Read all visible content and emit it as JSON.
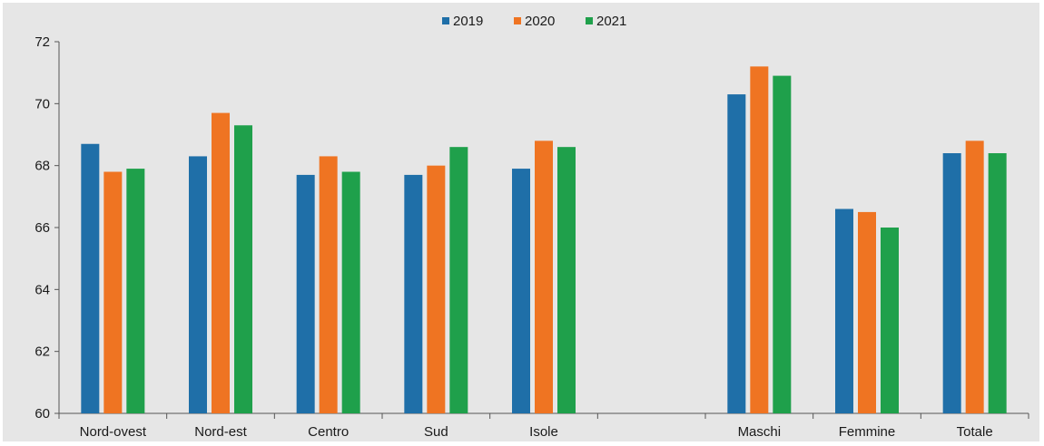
{
  "chart_data": {
    "type": "bar",
    "categories": [
      "Nord-ovest",
      "Nord-est",
      "Centro",
      "Sud",
      "Isole",
      "",
      "Maschi",
      "Femmine",
      "Totale"
    ],
    "series": [
      {
        "name": "2019",
        "color": "#1f6fa8",
        "values": [
          68.7,
          68.3,
          67.7,
          67.7,
          67.9,
          null,
          70.3,
          66.6,
          68.4
        ]
      },
      {
        "name": "2020",
        "color": "#ef7422",
        "values": [
          67.8,
          69.7,
          68.3,
          68.0,
          68.8,
          null,
          71.2,
          66.5,
          68.8
        ]
      },
      {
        "name": "2021",
        "color": "#1fa04b",
        "values": [
          67.9,
          69.3,
          67.8,
          68.6,
          68.6,
          null,
          70.9,
          66.0,
          68.4
        ]
      }
    ],
    "ylim": [
      60,
      72
    ],
    "yticks": [
      60,
      62,
      64,
      66,
      68,
      70,
      72
    ],
    "legend_position": "top-center",
    "grid": false
  }
}
